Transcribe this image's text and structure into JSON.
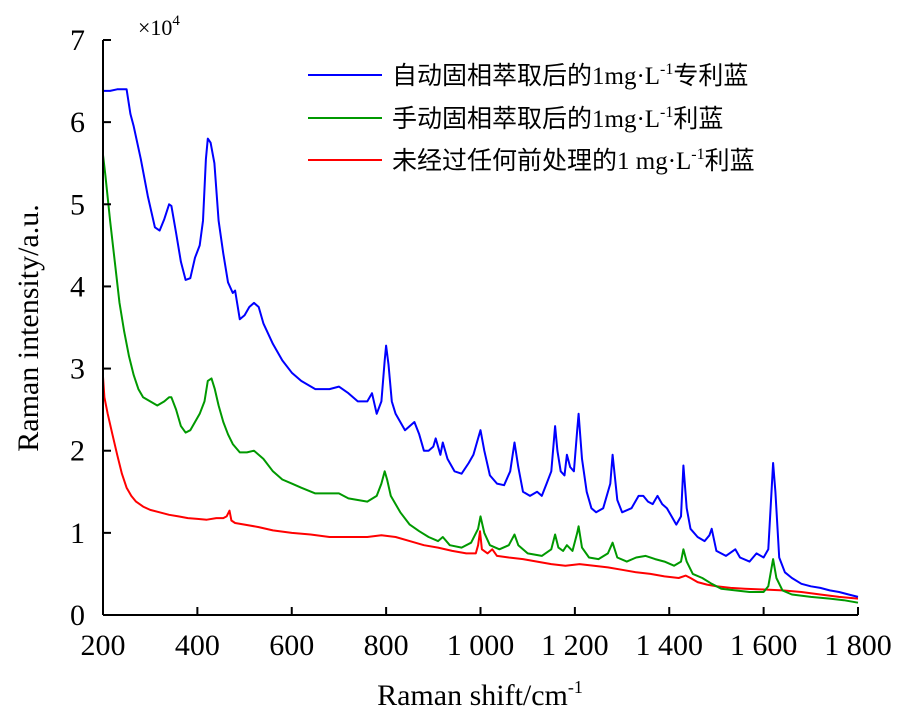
{
  "chart_data": {
    "type": "line",
    "xlabel": "Raman shift/cm",
    "xlabel_sup": "-1",
    "ylabel": "Raman intensity/a.u.",
    "y_multiplier": "×10",
    "y_multiplier_exp": "4",
    "xlim": [
      200,
      1800
    ],
    "ylim": [
      0,
      7
    ],
    "xticks": [
      200,
      400,
      600,
      800,
      1000,
      1200,
      1400,
      1600,
      1800
    ],
    "xtick_labels": [
      "200",
      "400",
      "600",
      "800",
      "1 000",
      "1 200",
      "1 400",
      "1 600",
      "1 800"
    ],
    "yticks": [
      0,
      1,
      2,
      3,
      4,
      5,
      6,
      7
    ],
    "ytick_labels": [
      "0",
      "1",
      "2",
      "3",
      "4",
      "5",
      "6",
      "7"
    ],
    "grid": false,
    "legend_position": "top-right",
    "series": [
      {
        "label_parts": [
          "自动固相萃取后的1mg·L",
          "-1",
          "专利蓝"
        ],
        "color": "#0000ff",
        "points": [
          [
            200,
            6.38
          ],
          [
            215,
            6.38
          ],
          [
            230,
            6.4
          ],
          [
            250,
            6.4
          ],
          [
            258,
            6.1
          ],
          [
            265,
            5.95
          ],
          [
            280,
            5.55
          ],
          [
            295,
            5.1
          ],
          [
            310,
            4.72
          ],
          [
            320,
            4.68
          ],
          [
            330,
            4.82
          ],
          [
            340,
            5.0
          ],
          [
            345,
            4.98
          ],
          [
            355,
            4.65
          ],
          [
            365,
            4.3
          ],
          [
            375,
            4.08
          ],
          [
            385,
            4.1
          ],
          [
            395,
            4.35
          ],
          [
            405,
            4.5
          ],
          [
            412,
            4.8
          ],
          [
            418,
            5.55
          ],
          [
            422,
            5.8
          ],
          [
            428,
            5.75
          ],
          [
            436,
            5.5
          ],
          [
            445,
            4.8
          ],
          [
            455,
            4.4
          ],
          [
            465,
            4.05
          ],
          [
            475,
            3.92
          ],
          [
            480,
            3.95
          ],
          [
            490,
            3.6
          ],
          [
            500,
            3.65
          ],
          [
            510,
            3.75
          ],
          [
            520,
            3.8
          ],
          [
            530,
            3.75
          ],
          [
            540,
            3.55
          ],
          [
            560,
            3.3
          ],
          [
            580,
            3.1
          ],
          [
            600,
            2.95
          ],
          [
            620,
            2.85
          ],
          [
            650,
            2.75
          ],
          [
            680,
            2.75
          ],
          [
            700,
            2.78
          ],
          [
            720,
            2.7
          ],
          [
            740,
            2.6
          ],
          [
            760,
            2.6
          ],
          [
            770,
            2.7
          ],
          [
            780,
            2.45
          ],
          [
            790,
            2.6
          ],
          [
            797,
            3.1
          ],
          [
            800,
            3.28
          ],
          [
            805,
            3.05
          ],
          [
            812,
            2.6
          ],
          [
            820,
            2.45
          ],
          [
            840,
            2.25
          ],
          [
            860,
            2.35
          ],
          [
            870,
            2.2
          ],
          [
            880,
            2.0
          ],
          [
            890,
            2.0
          ],
          [
            900,
            2.05
          ],
          [
            905,
            2.15
          ],
          [
            915,
            1.95
          ],
          [
            920,
            2.1
          ],
          [
            930,
            1.9
          ],
          [
            945,
            1.75
          ],
          [
            960,
            1.72
          ],
          [
            975,
            1.85
          ],
          [
            985,
            1.95
          ],
          [
            995,
            2.15
          ],
          [
            1000,
            2.25
          ],
          [
            1008,
            2.0
          ],
          [
            1020,
            1.7
          ],
          [
            1035,
            1.6
          ],
          [
            1050,
            1.58
          ],
          [
            1063,
            1.75
          ],
          [
            1072,
            2.1
          ],
          [
            1080,
            1.8
          ],
          [
            1090,
            1.5
          ],
          [
            1105,
            1.45
          ],
          [
            1120,
            1.5
          ],
          [
            1130,
            1.45
          ],
          [
            1140,
            1.6
          ],
          [
            1150,
            1.75
          ],
          [
            1158,
            2.3
          ],
          [
            1163,
            2.0
          ],
          [
            1170,
            1.75
          ],
          [
            1178,
            1.7
          ],
          [
            1183,
            1.95
          ],
          [
            1190,
            1.8
          ],
          [
            1198,
            1.75
          ],
          [
            1205,
            2.25
          ],
          [
            1208,
            2.45
          ],
          [
            1215,
            1.9
          ],
          [
            1225,
            1.5
          ],
          [
            1235,
            1.3
          ],
          [
            1245,
            1.25
          ],
          [
            1260,
            1.3
          ],
          [
            1275,
            1.6
          ],
          [
            1280,
            1.95
          ],
          [
            1290,
            1.4
          ],
          [
            1300,
            1.25
          ],
          [
            1320,
            1.3
          ],
          [
            1335,
            1.45
          ],
          [
            1345,
            1.45
          ],
          [
            1355,
            1.38
          ],
          [
            1365,
            1.35
          ],
          [
            1375,
            1.45
          ],
          [
            1385,
            1.35
          ],
          [
            1395,
            1.3
          ],
          [
            1405,
            1.2
          ],
          [
            1415,
            1.1
          ],
          [
            1425,
            1.2
          ],
          [
            1430,
            1.82
          ],
          [
            1437,
            1.3
          ],
          [
            1445,
            1.05
          ],
          [
            1460,
            0.95
          ],
          [
            1475,
            0.9
          ],
          [
            1485,
            0.97
          ],
          [
            1490,
            1.05
          ],
          [
            1500,
            0.78
          ],
          [
            1520,
            0.72
          ],
          [
            1540,
            0.8
          ],
          [
            1550,
            0.7
          ],
          [
            1570,
            0.65
          ],
          [
            1585,
            0.75
          ],
          [
            1600,
            0.7
          ],
          [
            1610,
            0.8
          ],
          [
            1620,
            1.85
          ],
          [
            1625,
            1.5
          ],
          [
            1633,
            0.7
          ],
          [
            1645,
            0.52
          ],
          [
            1660,
            0.45
          ],
          [
            1680,
            0.38
          ],
          [
            1700,
            0.35
          ],
          [
            1720,
            0.33
          ],
          [
            1740,
            0.3
          ],
          [
            1760,
            0.28
          ],
          [
            1780,
            0.25
          ],
          [
            1800,
            0.22
          ]
        ]
      },
      {
        "label_parts": [
          "手动固相萃取后的1mg·L",
          "-1",
          "利蓝"
        ],
        "color": "#009900",
        "points": [
          [
            200,
            5.6
          ],
          [
            205,
            5.35
          ],
          [
            215,
            4.8
          ],
          [
            225,
            4.3
          ],
          [
            235,
            3.8
          ],
          [
            245,
            3.45
          ],
          [
            255,
            3.15
          ],
          [
            265,
            2.92
          ],
          [
            275,
            2.75
          ],
          [
            285,
            2.65
          ],
          [
            300,
            2.6
          ],
          [
            315,
            2.55
          ],
          [
            330,
            2.6
          ],
          [
            340,
            2.65
          ],
          [
            345,
            2.65
          ],
          [
            355,
            2.5
          ],
          [
            365,
            2.3
          ],
          [
            375,
            2.22
          ],
          [
            385,
            2.25
          ],
          [
            395,
            2.35
          ],
          [
            405,
            2.45
          ],
          [
            415,
            2.6
          ],
          [
            422,
            2.85
          ],
          [
            430,
            2.88
          ],
          [
            437,
            2.75
          ],
          [
            445,
            2.55
          ],
          [
            455,
            2.35
          ],
          [
            465,
            2.2
          ],
          [
            475,
            2.08
          ],
          [
            490,
            1.98
          ],
          [
            505,
            1.98
          ],
          [
            520,
            2.0
          ],
          [
            540,
            1.9
          ],
          [
            560,
            1.75
          ],
          [
            580,
            1.65
          ],
          [
            600,
            1.6
          ],
          [
            620,
            1.55
          ],
          [
            650,
            1.48
          ],
          [
            680,
            1.48
          ],
          [
            700,
            1.48
          ],
          [
            720,
            1.42
          ],
          [
            740,
            1.4
          ],
          [
            760,
            1.38
          ],
          [
            780,
            1.45
          ],
          [
            790,
            1.6
          ],
          [
            797,
            1.75
          ],
          [
            802,
            1.65
          ],
          [
            810,
            1.45
          ],
          [
            830,
            1.25
          ],
          [
            850,
            1.1
          ],
          [
            870,
            1.02
          ],
          [
            890,
            0.95
          ],
          [
            910,
            0.9
          ],
          [
            920,
            0.95
          ],
          [
            935,
            0.85
          ],
          [
            960,
            0.82
          ],
          [
            980,
            0.88
          ],
          [
            995,
            1.05
          ],
          [
            1000,
            1.2
          ],
          [
            1008,
            1.0
          ],
          [
            1020,
            0.85
          ],
          [
            1040,
            0.8
          ],
          [
            1060,
            0.85
          ],
          [
            1072,
            0.98
          ],
          [
            1080,
            0.85
          ],
          [
            1100,
            0.75
          ],
          [
            1130,
            0.72
          ],
          [
            1150,
            0.8
          ],
          [
            1158,
            0.98
          ],
          [
            1165,
            0.82
          ],
          [
            1175,
            0.78
          ],
          [
            1183,
            0.85
          ],
          [
            1195,
            0.78
          ],
          [
            1205,
            1.0
          ],
          [
            1208,
            1.08
          ],
          [
            1215,
            0.82
          ],
          [
            1230,
            0.7
          ],
          [
            1250,
            0.68
          ],
          [
            1270,
            0.75
          ],
          [
            1280,
            0.88
          ],
          [
            1290,
            0.7
          ],
          [
            1310,
            0.65
          ],
          [
            1330,
            0.7
          ],
          [
            1350,
            0.72
          ],
          [
            1370,
            0.68
          ],
          [
            1390,
            0.65
          ],
          [
            1410,
            0.6
          ],
          [
            1425,
            0.65
          ],
          [
            1430,
            0.8
          ],
          [
            1437,
            0.65
          ],
          [
            1450,
            0.5
          ],
          [
            1470,
            0.45
          ],
          [
            1490,
            0.38
          ],
          [
            1510,
            0.32
          ],
          [
            1540,
            0.3
          ],
          [
            1570,
            0.28
          ],
          [
            1600,
            0.28
          ],
          [
            1610,
            0.35
          ],
          [
            1620,
            0.68
          ],
          [
            1627,
            0.45
          ],
          [
            1640,
            0.3
          ],
          [
            1660,
            0.25
          ],
          [
            1700,
            0.22
          ],
          [
            1740,
            0.2
          ],
          [
            1770,
            0.18
          ],
          [
            1800,
            0.15
          ]
        ]
      },
      {
        "label_parts": [
          "未经过任何前处理的1 mg·L",
          "-1",
          "利蓝"
        ],
        "color": "#ff0000",
        "points": [
          [
            200,
            2.9
          ],
          [
            203,
            2.65
          ],
          [
            210,
            2.45
          ],
          [
            220,
            2.2
          ],
          [
            230,
            1.95
          ],
          [
            240,
            1.72
          ],
          [
            250,
            1.55
          ],
          [
            260,
            1.45
          ],
          [
            270,
            1.38
          ],
          [
            285,
            1.32
          ],
          [
            300,
            1.28
          ],
          [
            320,
            1.25
          ],
          [
            340,
            1.22
          ],
          [
            360,
            1.2
          ],
          [
            380,
            1.18
          ],
          [
            400,
            1.17
          ],
          [
            420,
            1.16
          ],
          [
            440,
            1.18
          ],
          [
            455,
            1.18
          ],
          [
            462,
            1.2
          ],
          [
            468,
            1.27
          ],
          [
            472,
            1.15
          ],
          [
            480,
            1.12
          ],
          [
            500,
            1.1
          ],
          [
            530,
            1.07
          ],
          [
            560,
            1.03
          ],
          [
            600,
            1.0
          ],
          [
            640,
            0.98
          ],
          [
            680,
            0.95
          ],
          [
            720,
            0.95
          ],
          [
            760,
            0.95
          ],
          [
            790,
            0.97
          ],
          [
            820,
            0.95
          ],
          [
            850,
            0.9
          ],
          [
            880,
            0.85
          ],
          [
            910,
            0.82
          ],
          [
            940,
            0.78
          ],
          [
            970,
            0.75
          ],
          [
            990,
            0.75
          ],
          [
            995,
            0.85
          ],
          [
            999,
            1.02
          ],
          [
            1003,
            0.8
          ],
          [
            1015,
            0.75
          ],
          [
            1025,
            0.8
          ],
          [
            1035,
            0.72
          ],
          [
            1060,
            0.7
          ],
          [
            1090,
            0.68
          ],
          [
            1120,
            0.65
          ],
          [
            1150,
            0.62
          ],
          [
            1180,
            0.6
          ],
          [
            1210,
            0.62
          ],
          [
            1240,
            0.6
          ],
          [
            1270,
            0.58
          ],
          [
            1300,
            0.55
          ],
          [
            1330,
            0.52
          ],
          [
            1360,
            0.5
          ],
          [
            1390,
            0.47
          ],
          [
            1420,
            0.45
          ],
          [
            1435,
            0.48
          ],
          [
            1445,
            0.45
          ],
          [
            1460,
            0.4
          ],
          [
            1480,
            0.37
          ],
          [
            1500,
            0.35
          ],
          [
            1530,
            0.33
          ],
          [
            1560,
            0.32
          ],
          [
            1600,
            0.31
          ],
          [
            1640,
            0.3
          ],
          [
            1680,
            0.28
          ],
          [
            1720,
            0.25
          ],
          [
            1760,
            0.22
          ],
          [
            1800,
            0.2
          ]
        ]
      }
    ]
  }
}
